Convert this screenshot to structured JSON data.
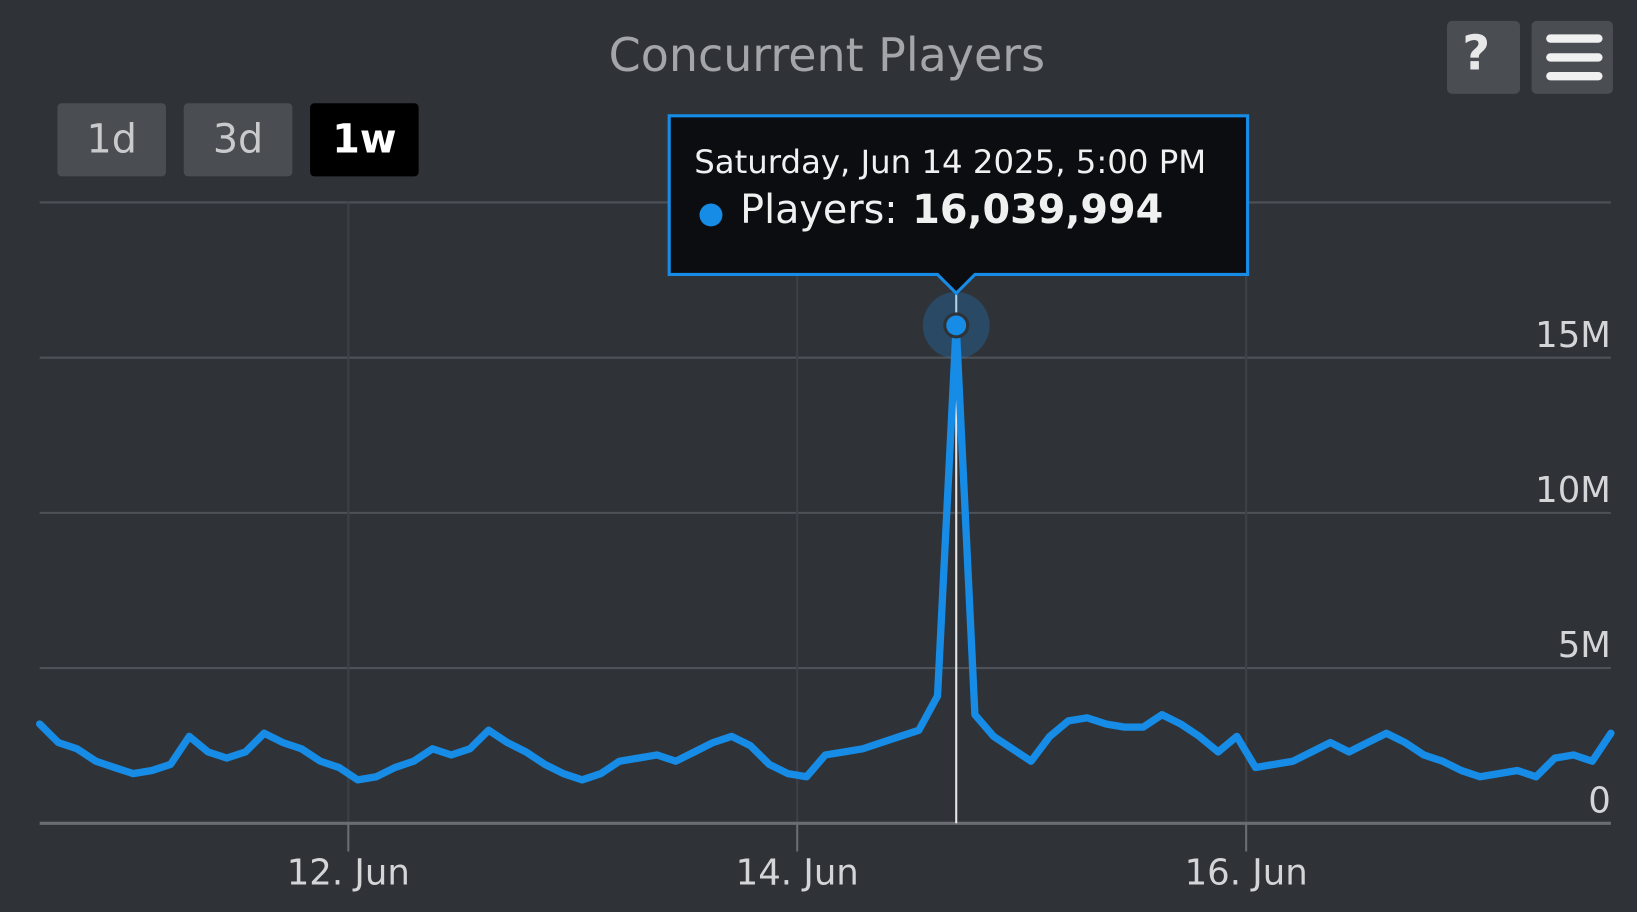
{
  "chart_data": {
    "type": "line",
    "title": "Concurrent Players",
    "range_buttons": [
      "1d",
      "3d",
      "1w"
    ],
    "selected_range": "1w",
    "help_button": "?",
    "color": "#168ce6",
    "xlim": [
      "2025-06-10T15:00",
      "2025-06-17T15:00"
    ],
    "xticks": [
      {
        "value": "2025-06-12T00:00",
        "label": "12. Jun"
      },
      {
        "value": "2025-06-14T00:00",
        "label": "14. Jun"
      },
      {
        "value": "2025-06-16T00:00",
        "label": "16. Jun"
      }
    ],
    "ylim": [
      0,
      20000000
    ],
    "yticks": [
      0,
      {
        "value": 5000000,
        "label": "5M"
      },
      {
        "value": 10000000,
        "label": "10M"
      },
      {
        "value": 15000000,
        "label": "15M"
      }
    ],
    "grid": true,
    "x": [
      "2025-06-10T15:00",
      "2025-06-10T17:00",
      "2025-06-10T19:00",
      "2025-06-10T21:00",
      "2025-06-10T23:00",
      "2025-06-11T01:00",
      "2025-06-11T03:00",
      "2025-06-11T05:00",
      "2025-06-11T07:00",
      "2025-06-11T09:00",
      "2025-06-11T11:00",
      "2025-06-11T13:00",
      "2025-06-11T15:00",
      "2025-06-11T17:00",
      "2025-06-11T19:00",
      "2025-06-11T21:00",
      "2025-06-11T23:00",
      "2025-06-12T01:00",
      "2025-06-12T03:00",
      "2025-06-12T05:00",
      "2025-06-12T07:00",
      "2025-06-12T09:00",
      "2025-06-12T11:00",
      "2025-06-12T13:00",
      "2025-06-12T15:00",
      "2025-06-12T17:00",
      "2025-06-12T19:00",
      "2025-06-12T21:00",
      "2025-06-12T23:00",
      "2025-06-13T01:00",
      "2025-06-13T03:00",
      "2025-06-13T05:00",
      "2025-06-13T07:00",
      "2025-06-13T09:00",
      "2025-06-13T11:00",
      "2025-06-13T13:00",
      "2025-06-13T15:00",
      "2025-06-13T17:00",
      "2025-06-13T19:00",
      "2025-06-13T21:00",
      "2025-06-13T23:00",
      "2025-06-14T01:00",
      "2025-06-14T03:00",
      "2025-06-14T05:00",
      "2025-06-14T07:00",
      "2025-06-14T09:00",
      "2025-06-14T11:00",
      "2025-06-14T13:00",
      "2025-06-14T15:00",
      "2025-06-14T17:00",
      "2025-06-14T19:00",
      "2025-06-14T21:00",
      "2025-06-14T23:00",
      "2025-06-15T01:00",
      "2025-06-15T03:00",
      "2025-06-15T05:00",
      "2025-06-15T07:00",
      "2025-06-15T09:00",
      "2025-06-15T11:00",
      "2025-06-15T13:00",
      "2025-06-15T15:00",
      "2025-06-15T17:00",
      "2025-06-15T19:00",
      "2025-06-15T21:00",
      "2025-06-15T23:00",
      "2025-06-16T01:00",
      "2025-06-16T03:00",
      "2025-06-16T05:00",
      "2025-06-16T07:00",
      "2025-06-16T09:00",
      "2025-06-16T11:00",
      "2025-06-16T13:00",
      "2025-06-16T15:00",
      "2025-06-16T17:00",
      "2025-06-16T19:00",
      "2025-06-16T21:00",
      "2025-06-16T23:00",
      "2025-06-17T01:00",
      "2025-06-17T03:00",
      "2025-06-17T05:00",
      "2025-06-17T07:00",
      "2025-06-17T09:00",
      "2025-06-17T11:00",
      "2025-06-17T13:00",
      "2025-06-17T15:00"
    ],
    "values": [
      3200000,
      2600000,
      2400000,
      2000000,
      1800000,
      1600000,
      1700000,
      1900000,
      2800000,
      2300000,
      2100000,
      2300000,
      2900000,
      2600000,
      2400000,
      2000000,
      1800000,
      1400000,
      1500000,
      1800000,
      2000000,
      2400000,
      2200000,
      2400000,
      3000000,
      2600000,
      2300000,
      1900000,
      1600000,
      1400000,
      1600000,
      2000000,
      2100000,
      2200000,
      2000000,
      2300000,
      2600000,
      2800000,
      2500000,
      1900000,
      1600000,
      1500000,
      2200000,
      2300000,
      2400000,
      2600000,
      2800000,
      3000000,
      4100000,
      16039994,
      3500000,
      2800000,
      2400000,
      2000000,
      2800000,
      3300000,
      3400000,
      3200000,
      3100000,
      3100000,
      3500000,
      3200000,
      2800000,
      2300000,
      2800000,
      1800000,
      1900000,
      2000000,
      2300000,
      2600000,
      2300000,
      2600000,
      2900000,
      2600000,
      2200000,
      2000000,
      1700000,
      1500000,
      1600000,
      1700000,
      1500000,
      2100000,
      2200000,
      2000000,
      2900000
    ],
    "tooltip": {
      "title": "Saturday, Jun 14 2025, 5:00 PM",
      "label": "Players:",
      "value_label": "16,039,994"
    }
  }
}
